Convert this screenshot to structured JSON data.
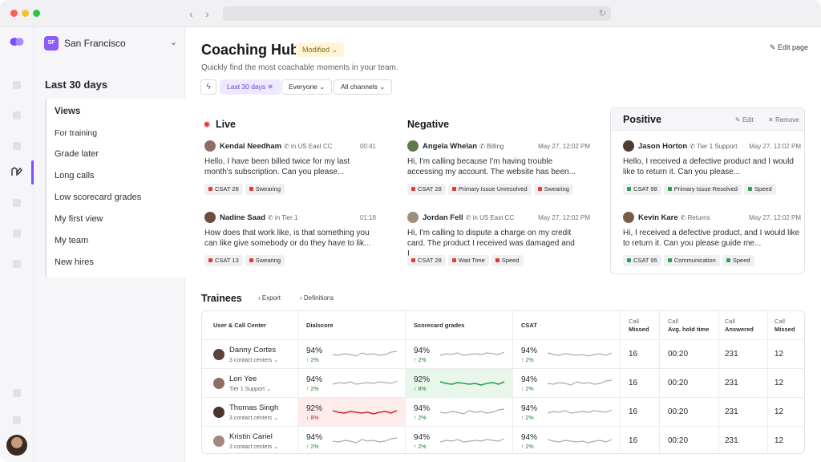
{
  "sidebar": {
    "workspace_badge": "SF",
    "workspace_name": "San Francisco",
    "section_title": "Last 30 days",
    "items": [
      {
        "label": "Views"
      },
      {
        "label": "For training"
      },
      {
        "label": "Grade later"
      },
      {
        "label": "Long calls"
      },
      {
        "label": "Low scorecard grades"
      },
      {
        "label": "My first view"
      },
      {
        "label": "My team"
      },
      {
        "label": "New hires"
      }
    ]
  },
  "header": {
    "title": "Coaching Hub",
    "badge": "Modified",
    "subtitle": "Quickly find the most coachable moments in your team.",
    "edit_page": "Edit page"
  },
  "filters": {
    "date": "Last 30 days",
    "people": "Everyone",
    "channels": "All channels"
  },
  "colors": {
    "accent": "#7c4dff",
    "red": "#e53935",
    "green": "#2e9e4f"
  },
  "cards": {
    "live": {
      "title": "Live",
      "calls": [
        {
          "name": "Kendal Needham",
          "meta": "in US East CC",
          "time": "00:41",
          "text": "Hello, I have been billed twice for my last month's subscription. Can you please...",
          "tags": [
            "CSAT 28",
            "Swearing"
          ]
        },
        {
          "name": "Nadine Saad",
          "meta": "in Tier 1",
          "time": "01:18",
          "text": "How does that work like, is that something you can like give somebody or do they have to lik...",
          "tags": [
            "CSAT 13",
            "Swearing"
          ]
        }
      ]
    },
    "negative": {
      "title": "Negative",
      "calls": [
        {
          "name": "Angela Whelan",
          "meta": "Billing",
          "time": "May 27, 12:02 PM",
          "text": "Hi, I'm calling because I'm having trouble accessing my account. The website has been...",
          "tags": [
            "CSAT 28",
            "Primary Issue Unresolved",
            "Swearing"
          ]
        },
        {
          "name": "Jordan Fell",
          "meta": "in US East CC",
          "time": "May 27, 12:02 PM",
          "text": "Hi, I'm calling to dispute a charge on my credit card. The product I received was damaged and I...",
          "tags": [
            "CSAT 28",
            "Wait Time",
            "Speed"
          ]
        }
      ]
    },
    "positive": {
      "title": "Positive",
      "edit": "Edit",
      "remove": "Remove",
      "calls": [
        {
          "name": "Jason Horton",
          "meta": "Tier 1 Support",
          "time": "May 27, 12:02 PM",
          "text": "Hello, I received a defective product and I would like to return it. Can you please...",
          "tags": [
            "CSAT 98",
            "Primary Issue Resolved",
            "Speed"
          ]
        },
        {
          "name": "Kevin Kare",
          "meta": "Returns",
          "time": "May 27, 12:02 PM",
          "text": "Hi, I received a defective product, and I would like to return it. Can you please guide me...",
          "tags": [
            "CSAT 95",
            "Communication",
            "Speed"
          ]
        }
      ]
    }
  },
  "trainees": {
    "title": "Trainees",
    "export": "Export",
    "definitions": "Definitions",
    "headers": {
      "user": "User & Call Center",
      "dialscore": "Dialscore",
      "scorecard": "Scorecard grades",
      "csat": "CSAT",
      "missed1_a": "Call",
      "missed1_b": "Missed",
      "hold_a": "Call",
      "hold_b": "Avg. hold time",
      "answered_a": "Call",
      "answered_b": "Answered",
      "missed2_a": "Call",
      "missed2_b": "Missed"
    },
    "rows": [
      {
        "name": "Danny Cortes",
        "sub": "3 contact centers",
        "dial": "94%",
        "dial_d": "2%",
        "score": "94%",
        "score_d": "2%",
        "csat": "94%",
        "csat_d": "2%",
        "missed": "16",
        "hold": "00:20",
        "answered": "231",
        "missed2": "12"
      },
      {
        "name": "Lori Yee",
        "sub": "Tier 1 Support",
        "dial": "94%",
        "dial_d": "2%",
        "score": "92%",
        "score_d": "8%",
        "csat": "94%",
        "csat_d": "2%",
        "missed": "16",
        "hold": "00:20",
        "answered": "231",
        "missed2": "12"
      },
      {
        "name": "Thomas Singh",
        "sub": "3 contact centers",
        "dial": "92%",
        "dial_d": "8%",
        "score": "94%",
        "score_d": "2%",
        "csat": "94%",
        "csat_d": "2%",
        "missed": "16",
        "hold": "00:20",
        "answered": "231",
        "missed2": "12"
      },
      {
        "name": "Kristin Cariel",
        "sub": "3 contact centers",
        "dial": "94%",
        "dial_d": "2%",
        "score": "94%",
        "score_d": "2%",
        "csat": "94%",
        "csat_d": "2%",
        "missed": "16",
        "hold": "00:20",
        "answered": "231",
        "missed2": "12"
      }
    ]
  }
}
